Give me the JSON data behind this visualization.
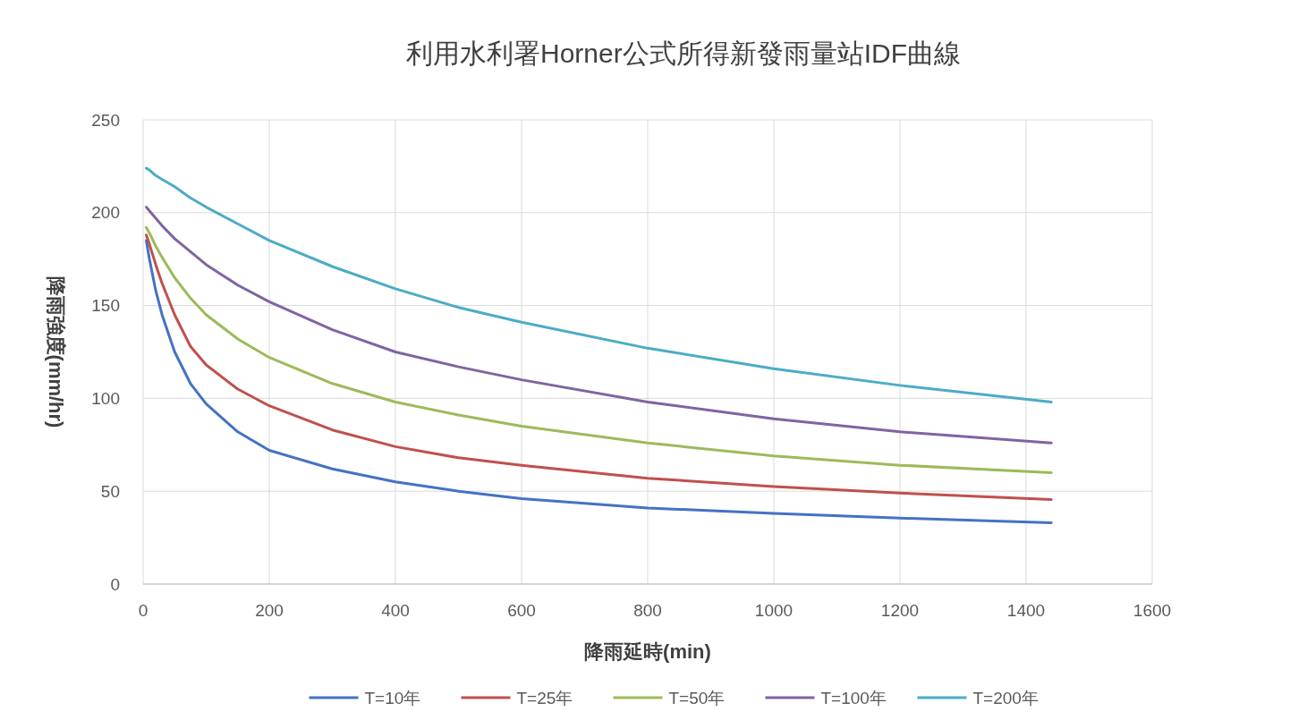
{
  "chart_data": {
    "type": "line",
    "title": "利用水利署Horner公式所得新發雨量站IDF曲線",
    "xlabel": "降雨延時(min)",
    "ylabel": "降雨強度(mm/hr)",
    "x": [
      5,
      10,
      20,
      30,
      50,
      75,
      100,
      150,
      200,
      300,
      400,
      500,
      600,
      800,
      1000,
      1200,
      1440
    ],
    "series": [
      {
        "name": "T=10年",
        "color": "#4472c4",
        "values": [
          185,
          175,
          158,
          145,
          125,
          108,
          97,
          82,
          72,
          62,
          55,
          50,
          46,
          41,
          38,
          35.5,
          33
        ]
      },
      {
        "name": "T=25年",
        "color": "#c0504d",
        "values": [
          188,
          183,
          172,
          162,
          145,
          128,
          118,
          105,
          96,
          83,
          74,
          68,
          64,
          57,
          52.5,
          49,
          45.5
        ]
      },
      {
        "name": "T=50年",
        "color": "#9bbb59",
        "values": [
          192,
          189,
          182,
          176,
          165,
          154,
          145,
          132,
          122,
          108,
          98,
          91,
          85,
          76,
          69,
          64,
          60
        ]
      },
      {
        "name": "T=100年",
        "color": "#8064a2",
        "values": [
          203,
          201,
          197,
          193,
          186,
          179,
          172,
          161,
          152,
          137,
          125,
          117,
          110,
          98,
          89,
          82,
          76
        ]
      },
      {
        "name": "T=200年",
        "color": "#4bacc6",
        "values": [
          224,
          223,
          220,
          218,
          214,
          208,
          203,
          194,
          185,
          171,
          159,
          149,
          141,
          127,
          116,
          107,
          98
        ]
      }
    ],
    "xlim": [
      0,
      1600
    ],
    "xticks": [
      0,
      200,
      400,
      600,
      800,
      1000,
      1200,
      1400,
      1600
    ],
    "ylim": [
      0,
      250
    ],
    "yticks": [
      0,
      50,
      100,
      150,
      200,
      250
    ],
    "grid": true,
    "legend": "bottom",
    "marker": "none",
    "line_style": "solid"
  }
}
